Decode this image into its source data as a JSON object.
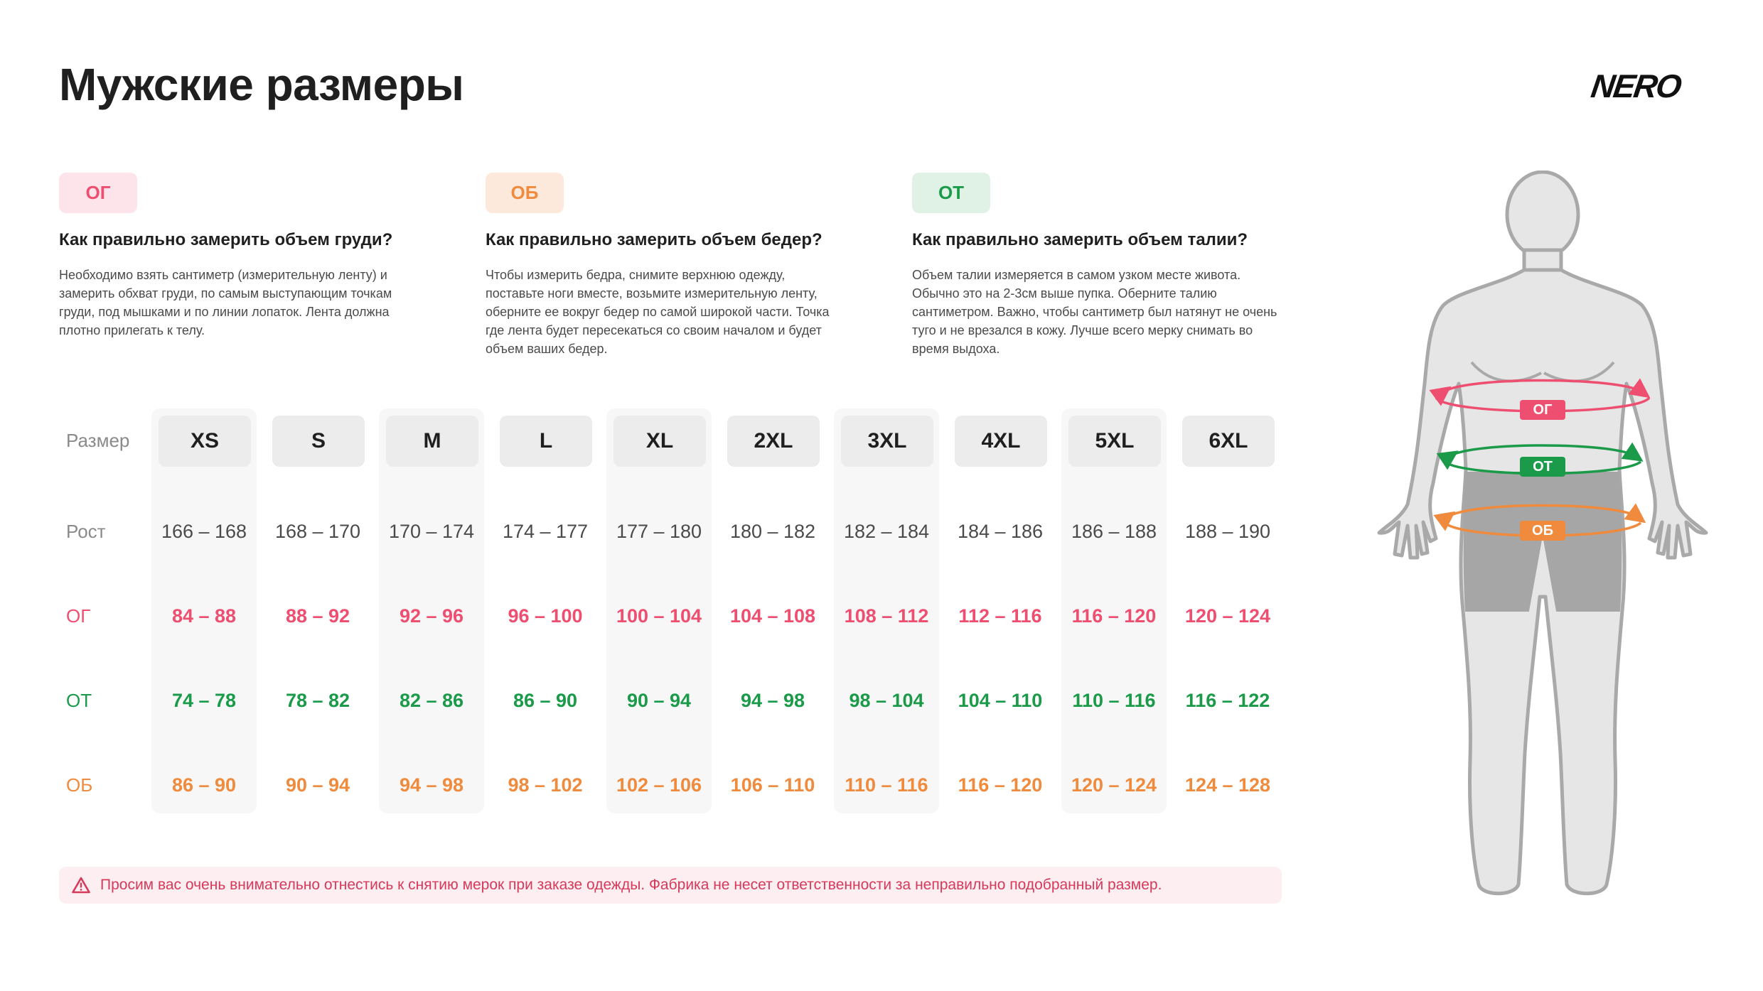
{
  "page": {
    "title": "Мужские размеры",
    "brand": "NERO"
  },
  "info": [
    {
      "badge": "ОГ",
      "heading": "Как правильно замерить объем груди?",
      "text": "Необходимо взять сантиметр (измерительную ленту) и замерить обхват груди, по самым выступающим точкам груди, под мышками и по линии лопаток. Лента должна плотно прилегать к телу."
    },
    {
      "badge": "ОБ",
      "heading": "Как правильно замерить объем бедер?",
      "text": "Чтобы измерить бедра, снимите верхнюю одежду, поставьте ноги вместе, возьмите измерительную ленту, оберните ее вокруг бедер по самой широкой части. Точка где лента будет пересекаться со своим началом и будет объем ваших бедер."
    },
    {
      "badge": "ОТ",
      "heading": "Как правильно замерить объем талии?",
      "text": "Объем талии измеряется в самом узком месте живота. Обычно это на 2-3см выше пупка. Оберните талию сантиметром. Важно, чтобы сантиметр был натянут не очень туго и не врезался в кожу. Лучше всего мерку снимать во время выдоха."
    }
  ],
  "table": {
    "row_labels": {
      "size": "Размер",
      "height": "Рост",
      "og": "ОГ",
      "ot": "ОТ",
      "ob": "ОБ"
    },
    "columns": [
      {
        "size": "XS",
        "height": "166 – 168",
        "og": "84 – 88",
        "ot": "74 – 78",
        "ob": "86 – 90"
      },
      {
        "size": "S",
        "height": "168 – 170",
        "og": "88 – 92",
        "ot": "78 – 82",
        "ob": "90 – 94"
      },
      {
        "size": "M",
        "height": "170 – 174",
        "og": "92 – 96",
        "ot": "82 – 86",
        "ob": "94 – 98"
      },
      {
        "size": "L",
        "height": "174 – 177",
        "og": "96 – 100",
        "ot": "86 – 90",
        "ob": "98 – 102"
      },
      {
        "size": "XL",
        "height": "177 – 180",
        "og": "100 – 104",
        "ot": "90 – 94",
        "ob": "102 – 106"
      },
      {
        "size": "2XL",
        "height": "180 – 182",
        "og": "104 – 108",
        "ot": "94 – 98",
        "ob": "106 – 110"
      },
      {
        "size": "3XL",
        "height": "182 – 184",
        "og": "108 – 112",
        "ot": "98 – 104",
        "ob": "110 – 116"
      },
      {
        "size": "4XL",
        "height": "184 – 186",
        "og": "112 – 116",
        "ot": "104 – 110",
        "ob": "116 – 120"
      },
      {
        "size": "5XL",
        "height": "186 – 188",
        "og": "116 – 120",
        "ot": "110 – 116",
        "ob": "120 – 124"
      },
      {
        "size": "6XL",
        "height": "188 – 190",
        "og": "120 – 124",
        "ot": "116 – 122",
        "ob": "124 – 128"
      }
    ]
  },
  "warning": {
    "icon": "warning-triangle-icon",
    "text": "Просим вас очень внимательно отнестись к снятию мерок при заказе одежды. Фабрика не несет ответственности за неправильно подобранный размер."
  },
  "figure": {
    "labels": {
      "og": "ОГ",
      "ot": "ОТ",
      "ob": "ОБ"
    }
  },
  "colors": {
    "og": "#ee4e6f",
    "ot": "#1b9a4a",
    "ob": "#f08a3c"
  }
}
